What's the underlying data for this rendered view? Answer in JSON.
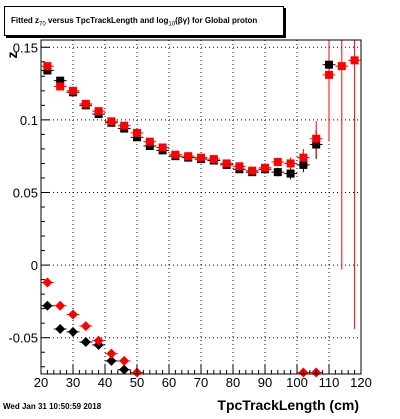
{
  "title": {
    "prefix": "Fitted  z",
    "sub1": "70",
    "middle": " versus TpcTrackLength and log",
    "sub2": "10",
    "suffix": "(βγ) for Global proton"
  },
  "timestamp": "Wed Jan 31 10:50:59 2018",
  "chart_data": {
    "type": "scatter",
    "title": "Fitted z70 versus TpcTrackLength and log10(βγ) for Global proton",
    "xlabel": "TpcTrackLength (cm)",
    "ylabel": "z",
    "xlim": [
      20,
      120
    ],
    "ylim": [
      -0.075,
      0.155
    ],
    "x_ticks": [
      20,
      30,
      40,
      50,
      60,
      70,
      80,
      90,
      100,
      110,
      120
    ],
    "x_tick_labels": [
      "20",
      "30",
      "40",
      "50",
      "60",
      "70",
      "80",
      "90",
      "100",
      "110",
      "120"
    ],
    "y_ticks": [
      -0.05,
      0,
      0.05,
      0.1,
      0.15
    ],
    "y_tick_labels": [
      "-0.05",
      "0",
      "0.05",
      "0.1",
      "0.15"
    ],
    "grid": true,
    "series": [
      {
        "marker": "square",
        "color": "#000000",
        "points": [
          {
            "x": 22,
            "y": 0.134,
            "err": 0.002
          },
          {
            "x": 26,
            "y": 0.127,
            "err": 0.002
          },
          {
            "x": 30,
            "y": 0.119,
            "err": 0.002
          },
          {
            "x": 34,
            "y": 0.11,
            "err": 0.002
          },
          {
            "x": 38,
            "y": 0.104,
            "err": 0.002
          },
          {
            "x": 42,
            "y": 0.098,
            "err": 0.002
          },
          {
            "x": 46,
            "y": 0.094,
            "err": 0.002
          },
          {
            "x": 50,
            "y": 0.088,
            "err": 0.002
          },
          {
            "x": 54,
            "y": 0.082,
            "err": 0.002
          },
          {
            "x": 58,
            "y": 0.079,
            "err": 0.002
          },
          {
            "x": 62,
            "y": 0.075,
            "err": 0.002
          },
          {
            "x": 66,
            "y": 0.074,
            "err": 0.002
          },
          {
            "x": 70,
            "y": 0.073,
            "err": 0.002
          },
          {
            "x": 74,
            "y": 0.072,
            "err": 0.002
          },
          {
            "x": 78,
            "y": 0.069,
            "err": 0.002
          },
          {
            "x": 82,
            "y": 0.066,
            "err": 0.002
          },
          {
            "x": 86,
            "y": 0.064,
            "err": 0.002
          },
          {
            "x": 90,
            "y": 0.066,
            "err": 0.003
          },
          {
            "x": 94,
            "y": 0.064,
            "err": 0.003
          },
          {
            "x": 98,
            "y": 0.063,
            "err": 0.004
          },
          {
            "x": 102,
            "y": 0.069,
            "err": 0.005
          },
          {
            "x": 106,
            "y": 0.083,
            "err": 0.01
          },
          {
            "x": 110,
            "y": 0.138,
            "err": 0.03
          }
        ]
      },
      {
        "marker": "square",
        "color": "#ff0000",
        "points": [
          {
            "x": 22,
            "y": 0.137,
            "err": 0.002
          },
          {
            "x": 26,
            "y": 0.123,
            "err": 0.002
          },
          {
            "x": 30,
            "y": 0.12,
            "err": 0.002
          },
          {
            "x": 34,
            "y": 0.111,
            "err": 0.002
          },
          {
            "x": 38,
            "y": 0.106,
            "err": 0.002
          },
          {
            "x": 42,
            "y": 0.099,
            "err": 0.002
          },
          {
            "x": 46,
            "y": 0.096,
            "err": 0.002
          },
          {
            "x": 50,
            "y": 0.091,
            "err": 0.002
          },
          {
            "x": 54,
            "y": 0.085,
            "err": 0.002
          },
          {
            "x": 58,
            "y": 0.081,
            "err": 0.002
          },
          {
            "x": 62,
            "y": 0.076,
            "err": 0.002
          },
          {
            "x": 66,
            "y": 0.075,
            "err": 0.002
          },
          {
            "x": 70,
            "y": 0.074,
            "err": 0.002
          },
          {
            "x": 74,
            "y": 0.073,
            "err": 0.002
          },
          {
            "x": 78,
            "y": 0.07,
            "err": 0.002
          },
          {
            "x": 82,
            "y": 0.068,
            "err": 0.002
          },
          {
            "x": 86,
            "y": 0.065,
            "err": 0.002
          },
          {
            "x": 90,
            "y": 0.067,
            "err": 0.003
          },
          {
            "x": 94,
            "y": 0.071,
            "err": 0.003
          },
          {
            "x": 98,
            "y": 0.07,
            "err": 0.004
          },
          {
            "x": 102,
            "y": 0.074,
            "err": 0.006
          },
          {
            "x": 106,
            "y": 0.087,
            "err": 0.012
          },
          {
            "x": 110,
            "y": 0.131,
            "err": 0.045
          },
          {
            "x": 114,
            "y": 0.137,
            "err": 0.14
          },
          {
            "x": 118,
            "y": 0.141,
            "err": 0.185
          }
        ]
      },
      {
        "marker": "diamond",
        "color": "#000000",
        "points": [
          {
            "x": 22,
            "y": -0.028
          },
          {
            "x": 26,
            "y": -0.044
          },
          {
            "x": 30,
            "y": -0.046
          },
          {
            "x": 34,
            "y": -0.053
          },
          {
            "x": 38,
            "y": -0.055
          },
          {
            "x": 42,
            "y": -0.066
          },
          {
            "x": 46,
            "y": -0.072
          }
        ]
      },
      {
        "marker": "diamond",
        "color": "#ff0000",
        "points": [
          {
            "x": 22,
            "y": -0.012
          },
          {
            "x": 26,
            "y": -0.028
          },
          {
            "x": 30,
            "y": -0.034
          },
          {
            "x": 34,
            "y": -0.042
          },
          {
            "x": 38,
            "y": -0.052
          },
          {
            "x": 42,
            "y": -0.061
          },
          {
            "x": 46,
            "y": -0.066
          },
          {
            "x": 50,
            "y": -0.074
          },
          {
            "x": 102,
            "y": -0.074
          },
          {
            "x": 106,
            "y": -0.074
          }
        ]
      }
    ]
  }
}
